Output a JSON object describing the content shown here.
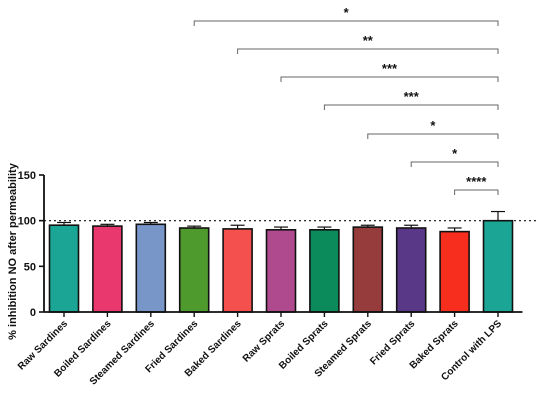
{
  "chart_data": {
    "type": "bar",
    "ylabel": "% inhibition  NO after permeability",
    "ylim": [
      0,
      150
    ],
    "yticks": [
      0,
      50,
      100,
      150
    ],
    "reference_line": {
      "y": 100,
      "style": "dotted"
    },
    "categories": [
      "Raw Sardines",
      "Boiled Sardines",
      "Steamed Sardines",
      "Fried Sardines",
      "Baked Sardines",
      "Raw Sprats",
      "Boiled Sprats",
      "Steamed Sprats",
      "Fried Sprats",
      "Baked Sprats",
      "Control with LPS"
    ],
    "values": [
      95,
      94,
      96,
      92,
      91,
      90,
      90,
      93,
      92,
      88,
      100
    ],
    "errors": [
      3,
      2,
      2,
      2,
      4,
      3,
      3,
      2,
      3,
      4,
      10
    ],
    "colors": [
      "#1aa595",
      "#e8386d",
      "#7896c8",
      "#4e9a2c",
      "#f4514e",
      "#b04a8f",
      "#0b8a5c",
      "#963c3c",
      "#5a3888",
      "#f72e1e",
      "#1aa595"
    ],
    "significance": [
      {
        "from": "Fried Sardines",
        "to": "Control with LPS",
        "label": "*"
      },
      {
        "from": "Baked Sardines",
        "to": "Control with LPS",
        "label": "**"
      },
      {
        "from": "Raw Sprats",
        "to": "Control with LPS",
        "label": "***"
      },
      {
        "from": "Boiled Sprats",
        "to": "Control with LPS",
        "label": "***"
      },
      {
        "from": "Steamed Sprats",
        "to": "Control with LPS",
        "label": "*"
      },
      {
        "from": "Fried Sprats",
        "to": "Control with LPS",
        "label": "*"
      },
      {
        "from": "Baked Sprats",
        "to": "Control with LPS",
        "label": "****"
      }
    ]
  }
}
